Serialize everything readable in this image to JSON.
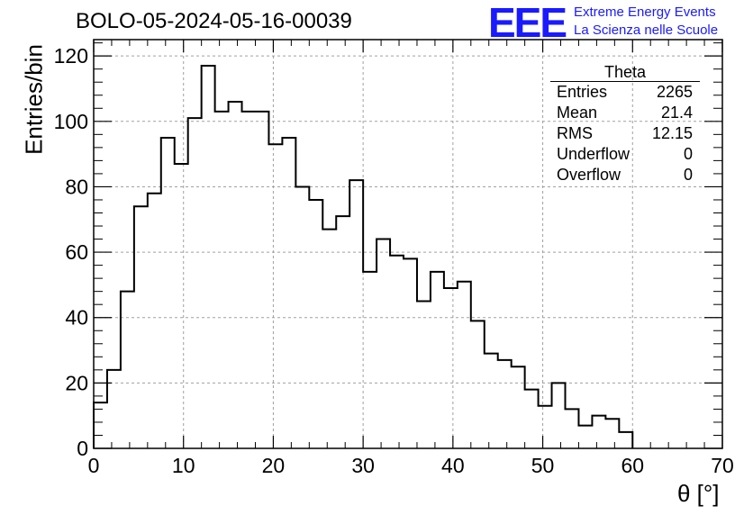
{
  "header": {
    "title": "BOLO-05-2024-05-16-00039",
    "logo_mark": "EEE",
    "logo_line1": "Extreme Energy Events",
    "logo_line2": "La Scienza nelle Scuole"
  },
  "stats": {
    "name": "Theta",
    "rows": [
      {
        "label": "Entries",
        "value": "2265"
      },
      {
        "label": "Mean",
        "value": "21.4"
      },
      {
        "label": "RMS",
        "value": "12.15"
      },
      {
        "label": "Underflow",
        "value": "0"
      },
      {
        "label": "Overflow",
        "value": "0"
      }
    ]
  },
  "chart_data": {
    "type": "bar",
    "style": "step-histogram",
    "title": "BOLO-05-2024-05-16-00039",
    "xlabel": "θ [°]",
    "ylabel": "Entries/bin",
    "xlim": [
      0,
      70
    ],
    "ylim": [
      0,
      125
    ],
    "bin_width": 1.5,
    "grid": true,
    "x_ticks": [
      0,
      10,
      20,
      30,
      40,
      50,
      60,
      70
    ],
    "y_ticks": [
      0,
      20,
      40,
      60,
      80,
      100,
      120
    ],
    "bin_edges_start": 0,
    "values": [
      14,
      24,
      48,
      74,
      78,
      95,
      87,
      101,
      117,
      103,
      106,
      103,
      103,
      93,
      95,
      80,
      76,
      67,
      71,
      82,
      54,
      64,
      59,
      58,
      45,
      54,
      49,
      51,
      39,
      29,
      27,
      25,
      18,
      13,
      20,
      12,
      7,
      10,
      9,
      5
    ]
  },
  "colors": {
    "line": "#000000",
    "grid": "#a0a0a0",
    "accent": "#1a1aff"
  }
}
